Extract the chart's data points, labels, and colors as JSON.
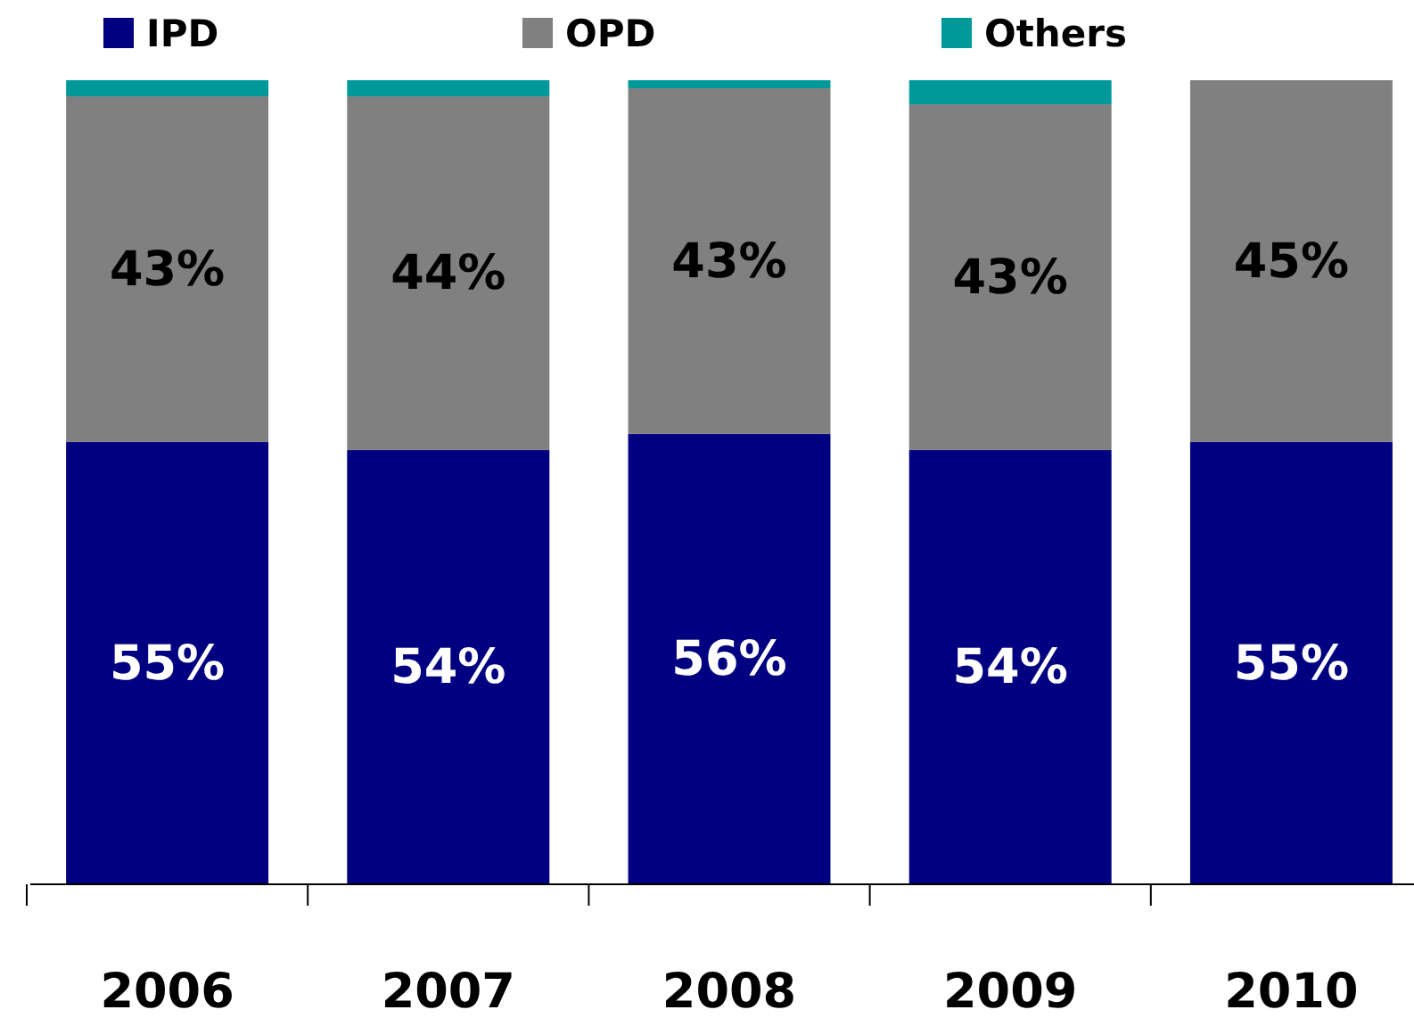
{
  "chart_data": {
    "type": "bar",
    "stacked": true,
    "legend": "top",
    "categories": [
      "2006",
      "2007",
      "2008",
      "2009",
      "2010"
    ],
    "series": [
      {
        "name": "IPD",
        "color": "#000080",
        "values": [
          55,
          54,
          56,
          54,
          55
        ],
        "value_labels": [
          "55%",
          "54%",
          "56%",
          "54%",
          "55%"
        ]
      },
      {
        "name": "OPD",
        "color": "#808080",
        "values": [
          43,
          44,
          43,
          43,
          45
        ],
        "value_labels": [
          "43%",
          "44%",
          "43%",
          "43%",
          "45%"
        ]
      },
      {
        "name": "Others",
        "color": "#009999",
        "values": [
          2,
          2,
          1,
          3,
          0
        ]
      }
    ]
  }
}
